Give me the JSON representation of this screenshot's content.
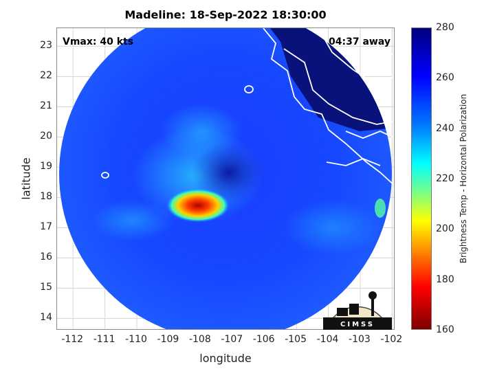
{
  "title": "Madeline: 18-Sep-2022 18:30:00",
  "annotations": {
    "vmax": "Vmax: 40 kts",
    "age": "04:37 away"
  },
  "xlabel": "longitude",
  "ylabel": "latitude",
  "colorbar_label": "Brightness Temp - Horizontal Polarization",
  "logo_text": "CIMSS",
  "x_ticks": [
    "-112",
    "-111",
    "-110",
    "-109",
    "-108",
    "-107",
    "-106",
    "-105",
    "-104",
    "-103",
    "-102"
  ],
  "y_ticks": [
    "23",
    "22",
    "21",
    "20",
    "19",
    "18",
    "17",
    "16",
    "15",
    "14"
  ],
  "colorbar_ticks": [
    "280",
    "260",
    "240",
    "220",
    "200",
    "180",
    "160"
  ],
  "chart_data": {
    "type": "heatmap",
    "title": "Madeline: 18-Sep-2022 18:30:00",
    "xlabel": "longitude",
    "ylabel": "latitude",
    "xlim": [
      -112.5,
      -101.9
    ],
    "ylim": [
      13.6,
      23.6
    ],
    "color_range": [
      160,
      280
    ],
    "colormap": "jet",
    "colorbar_label": "Brightness Temp - Horizontal Polarization",
    "swath_center": [
      -107.2,
      18.6
    ],
    "features": [
      {
        "name": "cold convective band",
        "lon": -108.2,
        "lat": 17.8,
        "min_tb": 175
      },
      {
        "name": "storm center",
        "lon": -107.0,
        "lat": 18.9
      }
    ],
    "grid": true
  }
}
